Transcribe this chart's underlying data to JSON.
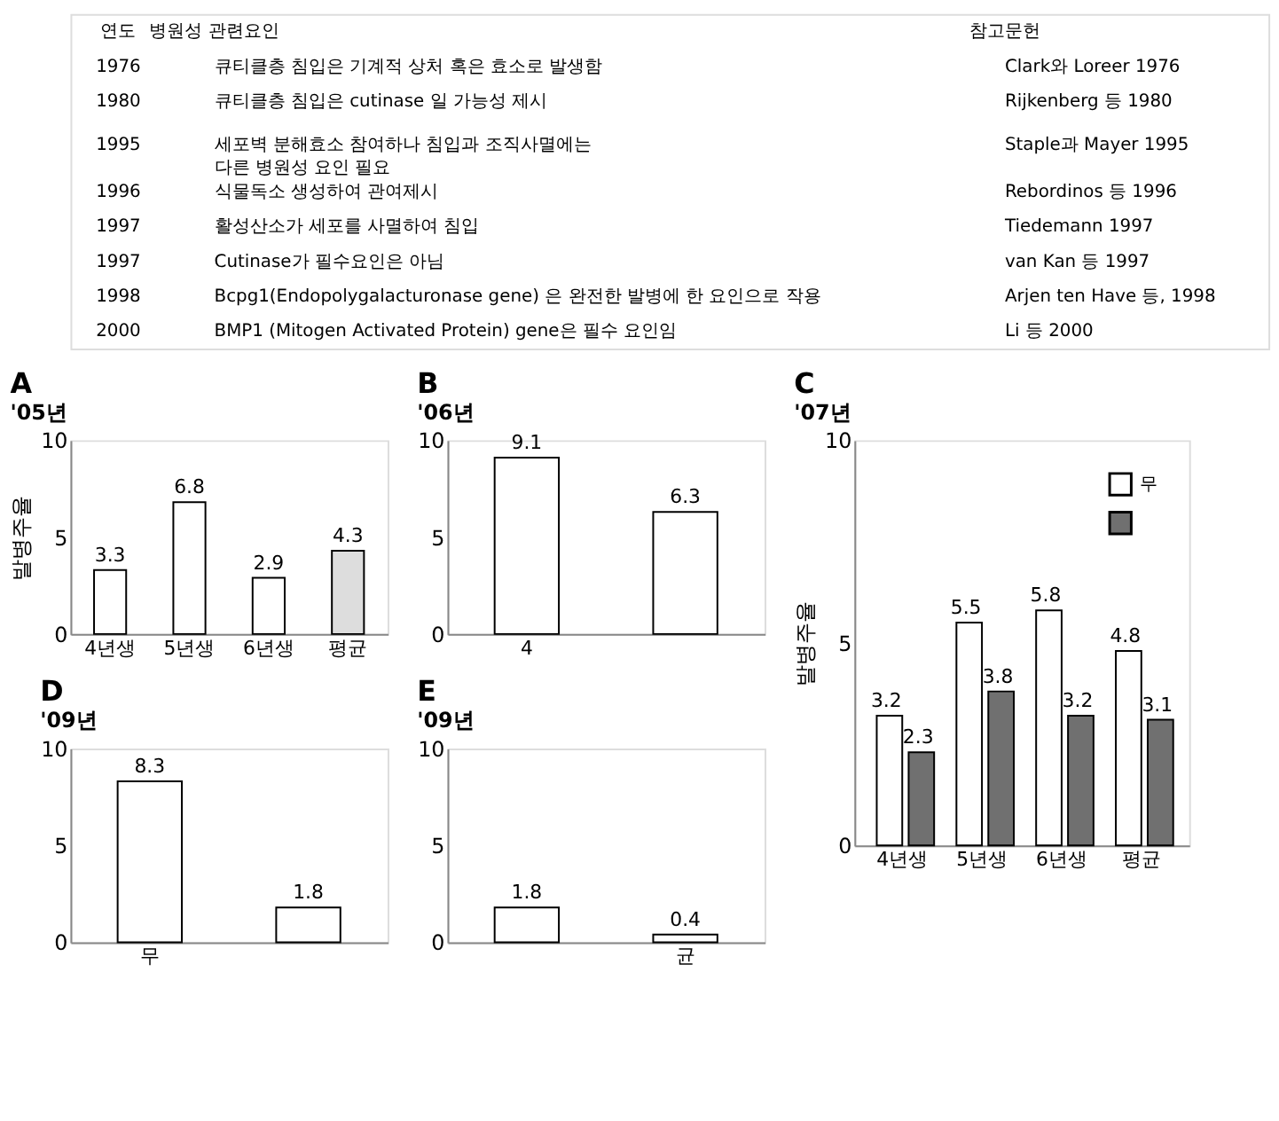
{
  "chart_data": [
    {
      "type": "other",
      "annotations": [
        "연도",
        "병원성 관련요인",
        "참고문헌",
        "1976",
        "큐티클층 침입은 기계적 상처 혹은 효소로 발생함",
        "Clark와 Loreer 1976",
        "1980",
        "큐티클층 침입은 cutinase 일 가능성 제시",
        "Rijkenberg 등 1980",
        "1995",
        "세포벽 분해효소 참여하나 침입과 조직사멸에는\n다른 병원성 요인 필요",
        "Staple과 Mayer 1995",
        "1996",
        "식물독소 생성하여 관여제시",
        "Rebordinos 등 1996",
        "1997",
        "활성산소가 세포를 사멸하여 침입",
        "Tiedemann 1997",
        "1997",
        "Cutinase가 필수요인은 아님",
        "van Kan 등 1997",
        "1998",
        "Bcpg1(Endopolygalacturonase gene) 은 완전한 발병에 한 요인으로 작용",
        "Arjen ten Have 등, 1998",
        "2000",
        "BMP1 (Mitogen Activated Protein) gene은 필수 요인임",
        "Li 등 2000"
      ]
    },
    {
      "type": "bar",
      "title": "A",
      "subtitle": "'05년",
      "ylabel": "발병주율",
      "categories": [
        "4년생",
        "5년생",
        "6년생",
        "평균"
      ],
      "values": [
        3.3,
        6.8,
        2.9,
        4.3
      ],
      "colors": [
        "#ffffff",
        "#ffffff",
        "#ffffff",
        "#dddddd"
      ],
      "ylim": [
        0,
        10
      ],
      "yticks": [
        0,
        5,
        10
      ],
      "data_labels": true,
      "grid": false
    },
    {
      "type": "bar",
      "title": "B",
      "subtitle": "'06년",
      "categories": [
        "4",
        null
      ],
      "values": [
        9.1,
        6.3
      ],
      "colors": [
        "#ffffff",
        "#ffffff"
      ],
      "ylim": [
        0,
        10
      ],
      "yticks": [
        0,
        5,
        10
      ],
      "data_labels": true,
      "grid": false
    },
    {
      "type": "bar",
      "title": "C",
      "subtitle": "'07년",
      "ylabel": "발병주율",
      "categories": [
        "4년생",
        "5년생",
        "6년생",
        "평균"
      ],
      "series": [
        {
          "name": "무",
          "color": "#ffffff",
          "values": [
            3.2,
            5.5,
            5.8,
            4.8
          ]
        },
        {
          "color": "#707070",
          "values": [
            2.3,
            3.8,
            3.2,
            3.1
          ]
        }
      ],
      "ylim": [
        0,
        10
      ],
      "yticks": [
        0,
        5,
        10
      ],
      "data_labels": true,
      "grid": false,
      "legend": "top right"
    },
    {
      "type": "bar",
      "title": "D",
      "subtitle": "'09년",
      "categories": [
        "무",
        null
      ],
      "values": [
        8.3,
        1.8
      ],
      "colors": [
        "#ffffff",
        "#ffffff"
      ],
      "ylim": [
        0,
        10
      ],
      "yticks": [
        0,
        5,
        10
      ],
      "data_labels": true,
      "grid": false
    },
    {
      "type": "bar",
      "title": "E",
      "subtitle": "'09년",
      "categories": [
        null,
        "균"
      ],
      "values": [
        1.8,
        0.4
      ],
      "colors": [
        "#ffffff",
        "#ffffff"
      ],
      "ylim": [
        0,
        10
      ],
      "yticks": [
        0,
        5,
        10
      ],
      "data_labels": true,
      "grid": false
    }
  ]
}
